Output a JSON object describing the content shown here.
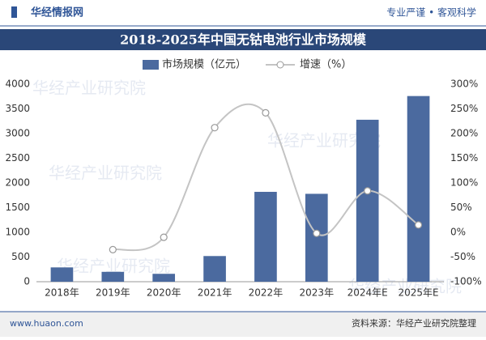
{
  "header": {
    "logo": "华经情报网",
    "slogan": "专业严谨 • 客观科学"
  },
  "chart_data": {
    "type": "bar-line",
    "title": "2018-2025年中国无钴电池行业市场规模",
    "categories": [
      "2018年",
      "2019年",
      "2020年",
      "2021年",
      "2022年",
      "2023年",
      "2024年E",
      "2025年E"
    ],
    "series": [
      {
        "name": "市场规模（亿元）",
        "type": "bar",
        "color": "#4b6a9f",
        "values": [
          290,
          200,
          160,
          520,
          1820,
          1780,
          3280,
          3760
        ]
      },
      {
        "name": "增速（%）",
        "type": "line",
        "axis": "y2",
        "color": "#c4c4c4",
        "values": [
          null,
          -35,
          -10,
          212,
          242,
          -2,
          84,
          15
        ]
      }
    ],
    "ylim": [
      0,
      4000
    ],
    "yticks": [
      0,
      500,
      1000,
      1500,
      2000,
      2500,
      3000,
      3500,
      4000
    ],
    "y2lim": [
      -100,
      300
    ],
    "y2ticks": [
      {
        "value": -100,
        "label": "-100%"
      },
      {
        "value": -50,
        "label": "-50%"
      },
      {
        "value": 0,
        "label": "0%"
      },
      {
        "value": 50,
        "label": "50%"
      },
      {
        "value": 100,
        "label": "100%"
      },
      {
        "value": 150,
        "label": "150%"
      },
      {
        "value": 200,
        "label": "200%"
      },
      {
        "value": 250,
        "label": "250%"
      },
      {
        "value": 300,
        "label": "300%"
      }
    ],
    "watermark": "华经产业研究院"
  },
  "footer": {
    "website": "www.huaon.com",
    "source": "资料来源：华经产业研究院整理"
  }
}
